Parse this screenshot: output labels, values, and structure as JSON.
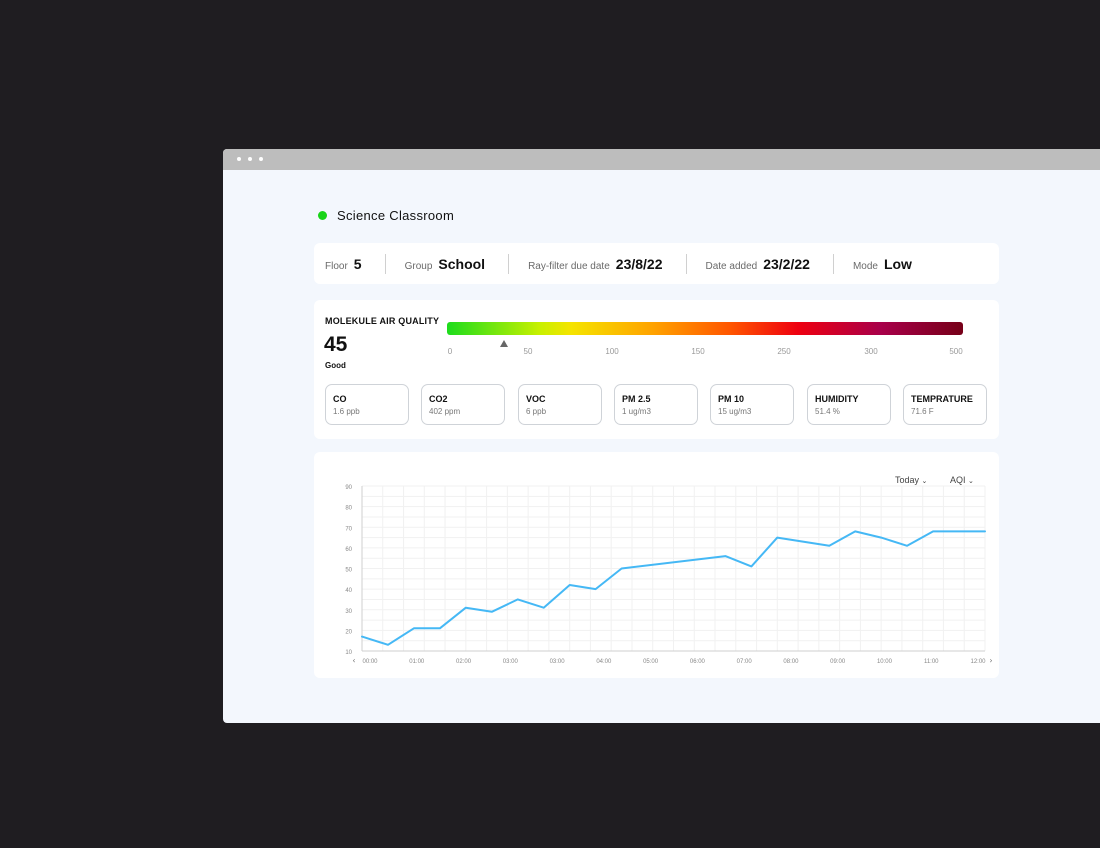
{
  "status": {
    "color": "#18d418"
  },
  "room": {
    "name": "Science Classroom"
  },
  "info": {
    "floor_label": "Floor",
    "floor_value": "5",
    "group_label": "Group",
    "group_value": "School",
    "rayfilter_label": "Ray-filter due date",
    "rayfilter_value": "23/8/22",
    "date_added_label": "Date added",
    "date_added_value": "23/2/22",
    "mode_label": "Mode",
    "mode_value": "Low"
  },
  "air_quality": {
    "title": "MOLEKULE AIR QUALITY",
    "value": "45",
    "status": "Good",
    "scale_ticks": [
      "0",
      "50",
      "100",
      "150",
      "250",
      "300",
      "500"
    ]
  },
  "metrics": [
    {
      "name": "CO",
      "value": "1.6 ppb"
    },
    {
      "name": "CO2",
      "value": "402 ppm"
    },
    {
      "name": "VOC",
      "value": "6 ppb"
    },
    {
      "name": "PM 2.5",
      "value": "1 ug/m3"
    },
    {
      "name": "PM 10",
      "value": "15 ug/m3"
    },
    {
      "name": "HUMIDITY",
      "value": "51.4 %"
    },
    {
      "name": "TEMPRATURE",
      "value": "71.6 F"
    }
  ],
  "chart_controls": {
    "range_label": "Today",
    "metric_label": "AQI",
    "prev_icon": "chevron-left-icon",
    "next_icon": "chevron-right-icon"
  },
  "chart_data": {
    "type": "line",
    "title": "",
    "xlabel": "",
    "ylabel": "",
    "x_tick_labels": [
      "00:00",
      "01:00",
      "02:00",
      "03:00",
      "03:00",
      "04:00",
      "05:00",
      "06:00",
      "07:00",
      "08:00",
      "09:00",
      "10:00",
      "11:00",
      "12:00"
    ],
    "y_ticks": [
      10,
      20,
      30,
      40,
      50,
      60,
      70,
      80,
      90
    ],
    "ylim": [
      10,
      90
    ],
    "grid": true,
    "line_color": "#45b8f5",
    "series": [
      {
        "values": [
          {
            "x": "00:00",
            "y": 17
          },
          {
            "x": "00:30",
            "y": 13
          },
          {
            "x": "01:00",
            "y": 21
          },
          {
            "x": "01:30",
            "y": 21
          },
          {
            "x": "02:00",
            "y": 31
          },
          {
            "x": "02:30",
            "y": 29
          },
          {
            "x": "03:00",
            "y": 35
          },
          {
            "x": "03:30",
            "y": 31
          },
          {
            "x": "04:00",
            "y": 42
          },
          {
            "x": "04:30",
            "y": 40
          },
          {
            "x": "05:00",
            "y": 50
          },
          {
            "x": "07:00",
            "y": 56
          },
          {
            "x": "07:30",
            "y": 51
          },
          {
            "x": "08:00",
            "y": 65
          },
          {
            "x": "09:00",
            "y": 61
          },
          {
            "x": "09:30",
            "y": 68
          },
          {
            "x": "10:00",
            "y": 65
          },
          {
            "x": "10:30",
            "y": 61
          },
          {
            "x": "11:00",
            "y": 68
          },
          {
            "x": "12:00",
            "y": 68
          }
        ]
      }
    ]
  }
}
